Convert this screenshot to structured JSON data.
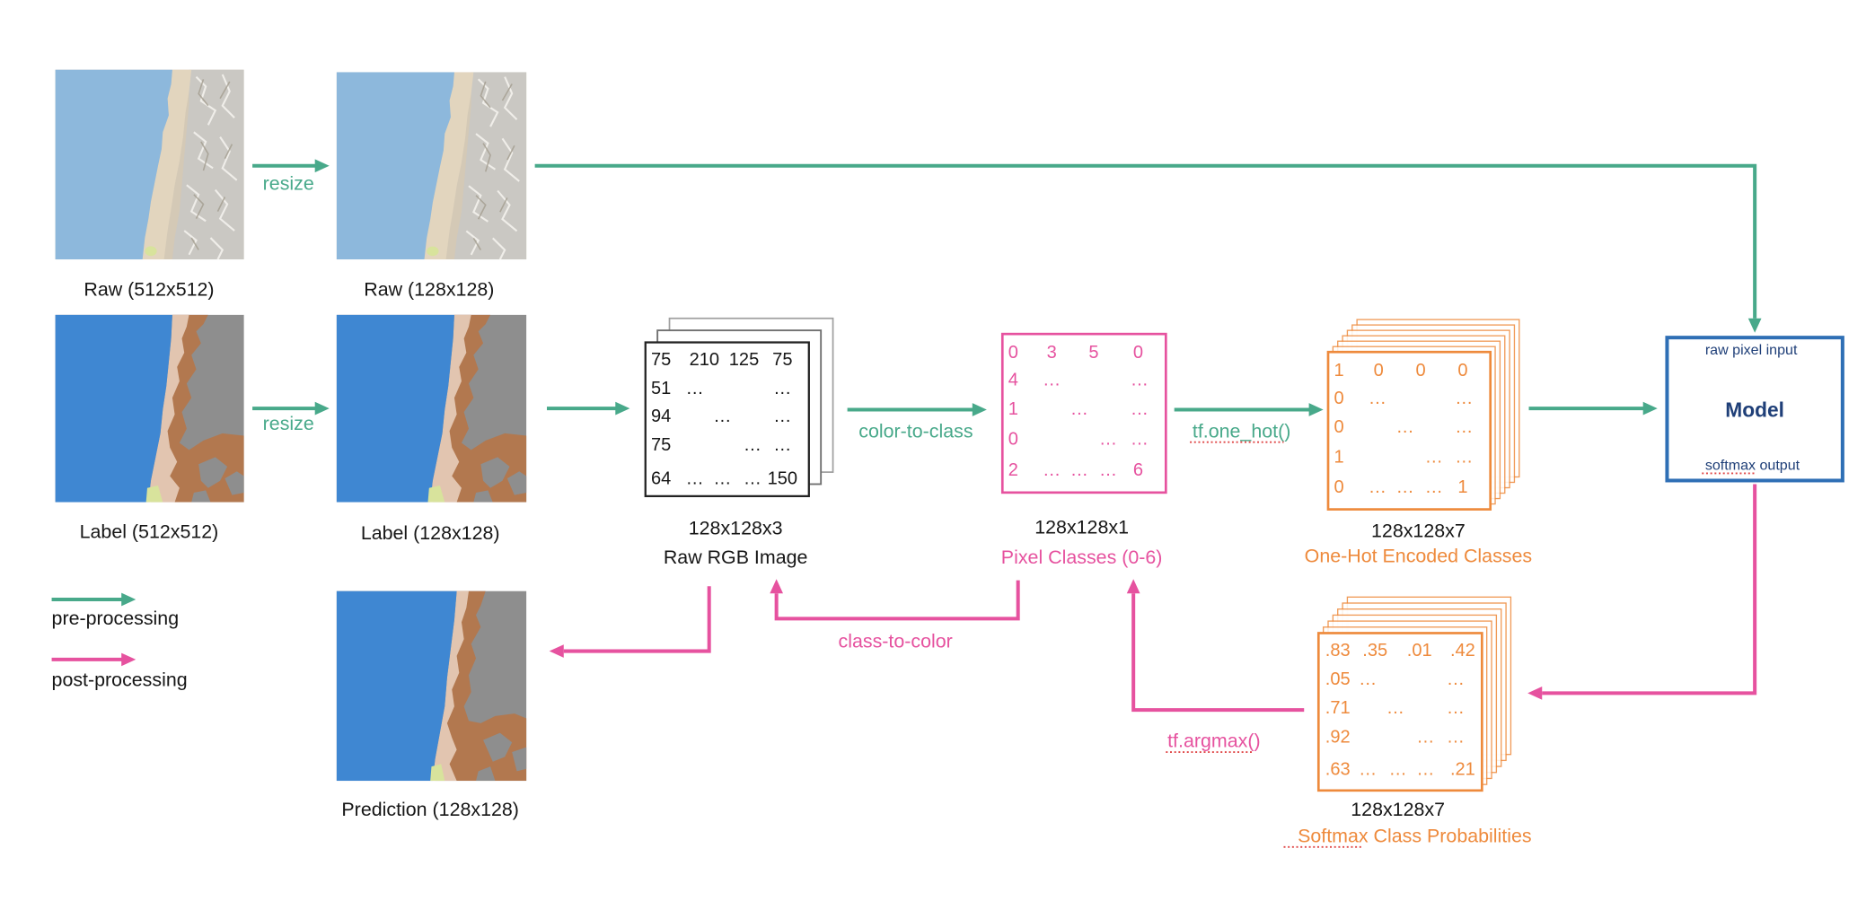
{
  "diagram": {
    "images": {
      "raw_512": "Raw (512x512)",
      "raw_128": "Raw (128x128)",
      "label_512": "Label (512x512)",
      "label_128": "Label (128x128)",
      "prediction_128": "Prediction (128x128)"
    },
    "edges": {
      "resize_raw": "resize",
      "resize_label": "resize",
      "color_to_class": "color-to-class",
      "one_hot": "tf.one_hot()",
      "class_to_color": "class-to-color",
      "argmax": "tf.argmax()"
    },
    "rgb_image": {
      "shape": "128x128x3",
      "caption": "Raw RGB Image",
      "rows": [
        [
          "75",
          "210",
          "125",
          "75"
        ],
        [
          "51",
          "…",
          "…"
        ],
        [
          "94",
          "…",
          "…"
        ],
        [
          "75",
          "…",
          "…"
        ],
        [
          "64",
          "…",
          "…",
          "…",
          "150"
        ]
      ]
    },
    "pixel_classes": {
      "shape": "128x128x1",
      "caption": "Pixel Classes (0-6)",
      "rows": [
        [
          "0",
          "3",
          "5",
          "0"
        ],
        [
          "4",
          "…",
          "…"
        ],
        [
          "1",
          "…",
          "…"
        ],
        [
          "0",
          "…",
          "…"
        ],
        [
          "2",
          "…",
          "…",
          "…",
          "6"
        ]
      ]
    },
    "one_hot": {
      "shape": "128x128x7",
      "caption": "One-Hot Encoded Classes",
      "rows": [
        [
          "1",
          "0",
          "0",
          "0"
        ],
        [
          "0",
          "…",
          "…"
        ],
        [
          "0",
          "…",
          "…"
        ],
        [
          "1",
          "…",
          "…"
        ],
        [
          "0",
          "…",
          "…",
          "…",
          "1"
        ]
      ]
    },
    "softmax": {
      "shape": "128x128x7",
      "caption": "Softmax Class Probabilities",
      "rows": [
        [
          ".83",
          ".35",
          ".01",
          ".42"
        ],
        [
          ".05",
          "…",
          "…"
        ],
        [
          ".71",
          "…",
          "…"
        ],
        [
          ".92",
          "…",
          "…"
        ],
        [
          ".63",
          "…",
          "…",
          "…",
          ".21"
        ]
      ]
    },
    "model": {
      "input_label": "raw pixel input",
      "title": "Model",
      "output_label": "softmax output"
    },
    "legend": {
      "pre": "pre-processing",
      "post": "post-processing"
    }
  },
  "colors": {
    "pre_processing": "#48a98a",
    "post_processing": "#e6529f",
    "tensor_orange": "#ee8a3c",
    "model_blue": "#2f6fb5",
    "model_text": "#1f3f78",
    "ocean_raw": "#8db8dc",
    "ocean_label": "#3f87d2",
    "coast_beige": "#e2c5b0",
    "terrain_brown": "#b2784f",
    "land_grey": "#8e8e8e"
  }
}
